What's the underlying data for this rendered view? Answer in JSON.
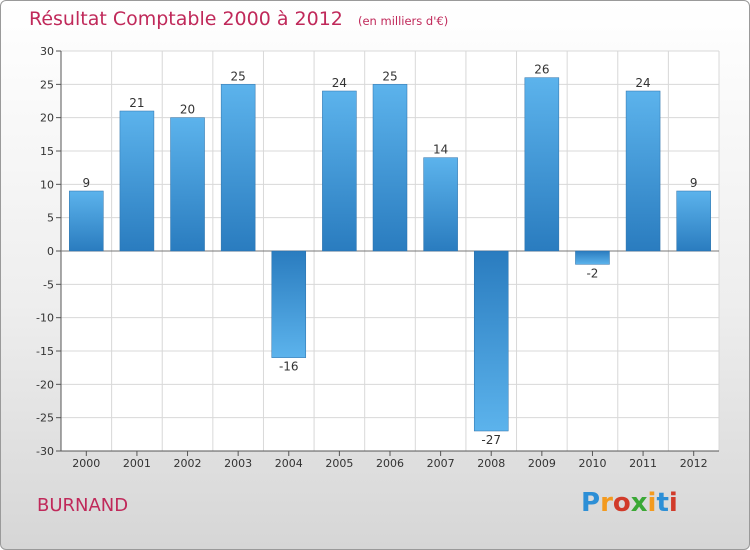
{
  "chart_data": {
    "type": "bar",
    "title": "Résultat Comptable 2000 à 2012",
    "unit": "(en milliers d'€)",
    "categories": [
      "2000",
      "2001",
      "2002",
      "2003",
      "2004",
      "2005",
      "2006",
      "2007",
      "2008",
      "2009",
      "2010",
      "2011",
      "2012"
    ],
    "values": [
      9,
      21,
      20,
      25,
      -16,
      24,
      25,
      14,
      -27,
      26,
      -2,
      24,
      9
    ],
    "ylim": [
      -30,
      30
    ],
    "yticks": [
      30,
      25,
      20,
      15,
      10,
      5,
      0,
      -5,
      -10,
      -15,
      -20,
      -25,
      -30
    ],
    "grid": true,
    "xlabel": "",
    "ylabel": ""
  },
  "commune": "BURNAND",
  "logo": {
    "letters": [
      "P",
      "r",
      "o",
      "x",
      "i",
      "t",
      "i"
    ],
    "colors": [
      "#2d8fd6",
      "#f39a1e",
      "#d13b2a",
      "#3aa835",
      "#f39a1e",
      "#2d8fd6",
      "#d13b2a"
    ]
  },
  "colors": {
    "bar_light": "#5cb3ec",
    "bar_dark": "#2a7cbf",
    "title": "#c0295a"
  }
}
